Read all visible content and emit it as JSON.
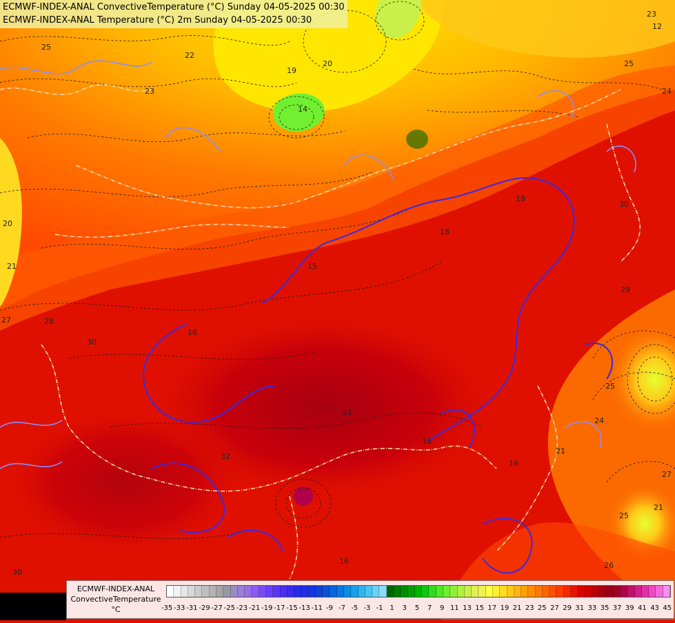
{
  "title": {
    "line1": "ECMWF-INDEX-ANAL ConvectiveTemperature (°C) Sunday 04-05-2025 00:30",
    "line2": "ECMWF-INDEX-ANAL Temperature (°C) 2m Sunday 04-05-2025 00:30"
  },
  "legend": {
    "line1": "ECMWF-INDEX-ANAL",
    "line2": "ConvectiveTemperature",
    "line3": "°C",
    "ticks": [
      "-35",
      "-33",
      "-31",
      "-29",
      "-27",
      "-25",
      "-23",
      "-21",
      "-19",
      "-17",
      "-15",
      "-13",
      "-11",
      "-9",
      "-7",
      "-5",
      "-3",
      "-1",
      "1",
      "3",
      "5",
      "7",
      "9",
      "11",
      "13",
      "15",
      "17",
      "19",
      "21",
      "23",
      "25",
      "27",
      "29",
      "31",
      "33",
      "35",
      "37",
      "39",
      "41",
      "43",
      "45"
    ],
    "colors": [
      "#ffffff",
      "#f2f2f2",
      "#e6e6e6",
      "#d9d9d9",
      "#cccccc",
      "#bfbfbf",
      "#b3b3b3",
      "#a6a6a6",
      "#9999a6",
      "#9a8cc6",
      "#9a7ed8",
      "#9a6ee6",
      "#8c5cf0",
      "#7a4cf4",
      "#6a40f6",
      "#5a36f6",
      "#4a2ef4",
      "#3a2af0",
      "#2a2aec",
      "#1e2ee6",
      "#1436de",
      "#0e42d6",
      "#0a52d6",
      "#0a64dc",
      "#0a78e0",
      "#0a8ce4",
      "#18a0ea",
      "#30b4ee",
      "#4ac4f2",
      "#6ad2f4",
      "#8adcf6",
      "#006400",
      "#007a00",
      "#008c00",
      "#00a000",
      "#00b400",
      "#10c810",
      "#30dc20",
      "#50e828",
      "#70f030",
      "#90f038",
      "#b0f040",
      "#c8f048",
      "#e0f050",
      "#f0f050",
      "#ffff40",
      "#ffee30",
      "#ffdc20",
      "#ffc818",
      "#ffb410",
      "#ffa008",
      "#ff8c04",
      "#ff7800",
      "#ff6400",
      "#ff5000",
      "#ff3c00",
      "#f52800",
      "#e81400",
      "#dc0000",
      "#cc0000",
      "#bc0008",
      "#aa0010",
      "#98001a",
      "#a0002a",
      "#b0004a",
      "#c0106a",
      "#d0208a",
      "#e030a8",
      "#ee48c4",
      "#f468dc",
      "#f890ee"
    ]
  },
  "map_labels": [
    "25",
    "22",
    "23",
    "19",
    "20",
    "14",
    "23",
    "12",
    "25",
    "24",
    "20",
    "21",
    "27",
    "28",
    "30",
    "16",
    "30",
    "29",
    "25",
    "24",
    "21",
    "27",
    "21",
    "32",
    "33",
    "16",
    "16",
    "25",
    "26",
    "30",
    "16",
    "18",
    "18",
    "15"
  ],
  "palette": {
    "deep_red": "#b8000a",
    "red": "#e01000",
    "orange_red": "#ff4a00",
    "orange": "#ff8a00",
    "yellow_orange": "#ffb800",
    "yellow": "#ffe600",
    "lime": "#e6ff30",
    "isotherm_blue": "#3a2ae0",
    "border": "#f5d9a8",
    "contour": "#1a1a1a"
  }
}
